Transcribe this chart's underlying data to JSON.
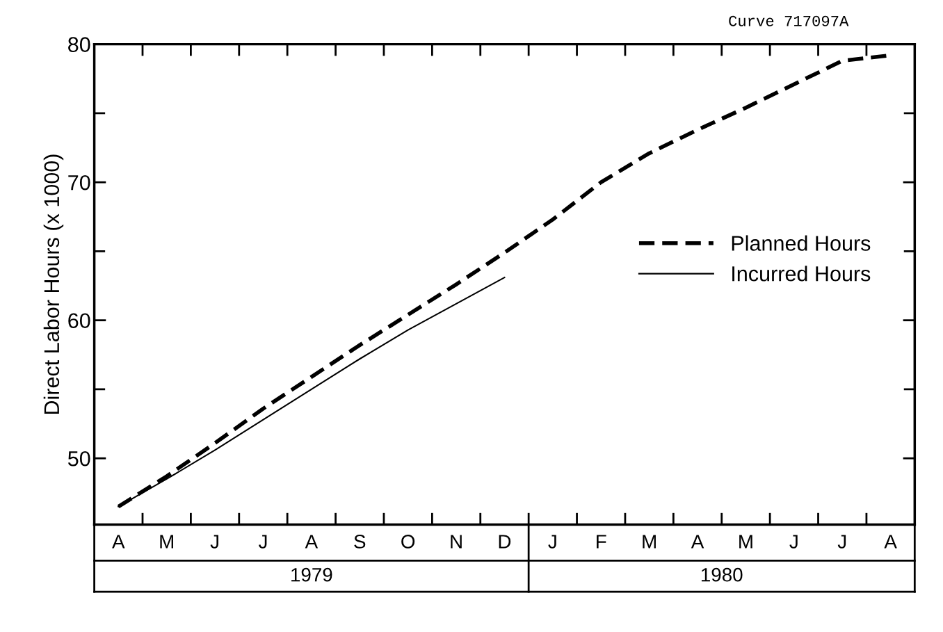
{
  "chart_data": {
    "type": "line",
    "ylabel": "Direct Labor Hours (x 1000)",
    "annotations": [
      "Curve 717097A",
      "1979",
      "1980"
    ],
    "categories": [
      "A",
      "M",
      "J",
      "J",
      "A",
      "S",
      "O",
      "N",
      "D",
      "J",
      "F",
      "M",
      "A",
      "M",
      "J",
      "J",
      "A"
    ],
    "series": [
      {
        "name": "Planned Hours",
        "color": "#000000",
        "line_style": "dashed",
        "values": [
          46.5,
          48.7,
          51.1,
          53.6,
          55.9,
          58.2,
          60.4,
          62.6,
          64.9,
          67.3,
          70.0,
          72.1,
          73.8,
          75.4,
          77.1,
          78.8,
          79.2
        ]
      },
      {
        "name": "Incurred Hours",
        "color": "#000000",
        "line_style": "solid",
        "values": [
          46.5,
          48.5,
          50.6,
          52.8,
          55.0,
          57.2,
          59.3,
          61.2,
          63.1,
          null,
          null,
          null,
          null,
          null,
          null,
          null,
          null
        ]
      }
    ],
    "ylim": [
      45.2,
      80
    ],
    "yticks": [
      50,
      {
        "value": 55,
        "label": null
      },
      60,
      {
        "value": 65,
        "label": null
      },
      70,
      {
        "value": 75,
        "label": null
      },
      80
    ],
    "legend": "center right",
    "grid": false
  }
}
